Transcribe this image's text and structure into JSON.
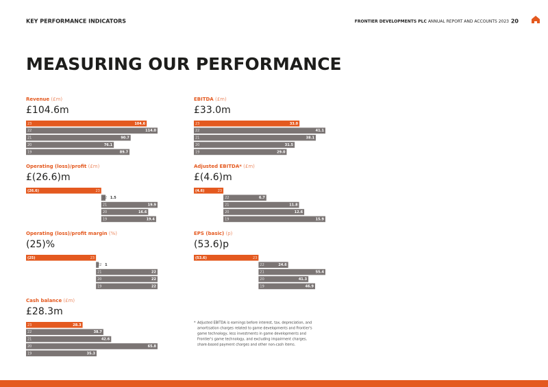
{
  "header": {
    "section": "KEY PERFORMANCE INDICATORS",
    "company": "FRONTIER DEVELOPMENTS PLC",
    "report": "ANNUAL REPORT AND ACCOUNTS 2023",
    "page": "20"
  },
  "title": "MEASURING OUR PERFORMANCE",
  "chart_data": [
    {
      "type": "bar",
      "title": "Revenue",
      "unit": "(£m)",
      "headline": "£104.6m",
      "categories": [
        "23",
        "22",
        "21",
        "20",
        "19"
      ],
      "values": [
        104.6,
        114.0,
        90.7,
        76.1,
        89.7
      ],
      "value_labels": [
        "104.6",
        "114.0",
        "90.7",
        "76.1",
        "89.7"
      ],
      "color": "#7b7574",
      "highlight_color": "#e4591f"
    },
    {
      "type": "bar",
      "title": "EBITDA",
      "unit": "(£m)",
      "headline": "£33.0m",
      "categories": [
        "23",
        "22",
        "21",
        "20",
        "19"
      ],
      "values": [
        33.0,
        41.1,
        38.1,
        31.5,
        29.0
      ],
      "value_labels": [
        "33.0",
        "41.1",
        "38.1",
        "31.5",
        "29.0"
      ],
      "color": "#7b7574",
      "highlight_color": "#e4591f"
    },
    {
      "type": "bar",
      "title": "Operating (loss)/profit",
      "unit": "(£m)",
      "headline": "£(26.6)m",
      "categories": [
        "23",
        "22",
        "21",
        "20",
        "19"
      ],
      "values": [
        -26.6,
        1.5,
        19.9,
        16.6,
        19.4
      ],
      "value_labels": [
        "(26.6)",
        "1.5",
        "19.9",
        "16.6",
        "19.4"
      ],
      "color": "#7b7574",
      "highlight_color": "#e4591f"
    },
    {
      "type": "bar",
      "title": "Adjusted EBITDA*",
      "unit": "(£m)",
      "headline": "£(4.6)m",
      "categories": [
        "23",
        "22",
        "21",
        "20",
        "19"
      ],
      "values": [
        -4.6,
        6.7,
        11.8,
        12.6,
        15.9
      ],
      "value_labels": [
        "(4.6)",
        "6.7",
        "11.8",
        "12.6",
        "15.9"
      ],
      "color": "#7b7574",
      "highlight_color": "#e4591f"
    },
    {
      "type": "bar",
      "title": "Operating (loss)/profit margin",
      "unit": "(%)",
      "headline": "(25)%",
      "categories": [
        "23",
        "22",
        "21",
        "20",
        "19"
      ],
      "values": [
        -25,
        1,
        22,
        22,
        22
      ],
      "value_labels": [
        "(25)",
        "1",
        "22",
        "22",
        "22"
      ],
      "color": "#7b7574",
      "highlight_color": "#e4591f"
    },
    {
      "type": "bar",
      "title": "EPS (basic)",
      "unit": "(p)",
      "headline": "(53.6)p",
      "categories": [
        "23",
        "22",
        "21",
        "20",
        "19"
      ],
      "values": [
        -53.6,
        24.6,
        55.4,
        41.3,
        46.9
      ],
      "value_labels": [
        "(53.6)",
        "24.6",
        "55.4",
        "41.3",
        "46.9"
      ],
      "color": "#7b7574",
      "highlight_color": "#e4591f"
    },
    {
      "type": "bar",
      "title": "Cash balance",
      "unit": "(£m)",
      "headline": "£28.3m",
      "categories": [
        "23",
        "22",
        "21",
        "20",
        "19"
      ],
      "values": [
        28.3,
        38.7,
        42.6,
        65.8,
        35.3
      ],
      "value_labels": [
        "28.3",
        "38.7",
        "42.6",
        "65.8",
        "35.3"
      ],
      "color": "#7b7574",
      "highlight_color": "#e4591f"
    }
  ],
  "footnote": {
    "marker": "*",
    "lines": [
      "Adjusted EBITDA is earnings before interest, tax, depreciation, and",
      "amortisation charges related to game developments and Frontier's",
      "game technology, less investments in game developments and",
      "Frontier's game technology, and excluding impairment charges,",
      "share-based payment charges and other non-cash items."
    ]
  }
}
